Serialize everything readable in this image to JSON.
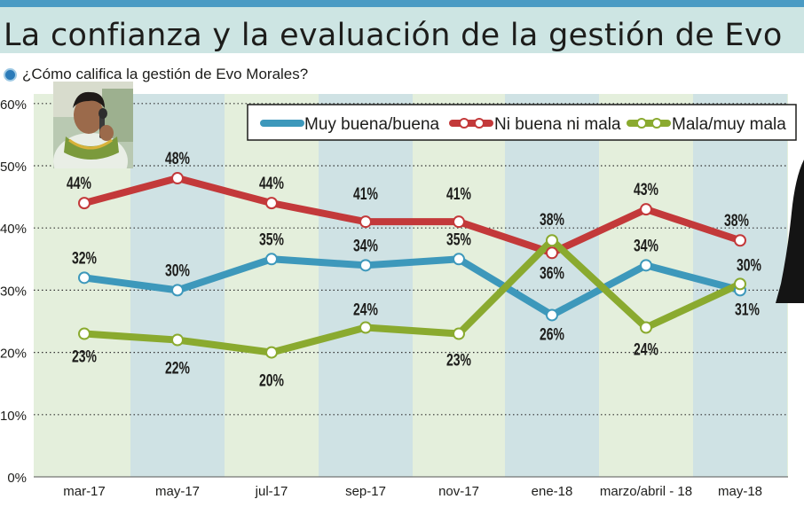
{
  "header": {
    "title": "La confianza y la evaluación de la gestión de Evo",
    "subtitle": "¿Cómo califica la gestión de Evo Morales?"
  },
  "colors": {
    "header_bg": "#cde5e3",
    "plot_bg": "#e4efdc",
    "band_bg": "#cfe2e4",
    "muy_buena": "#3d98bb",
    "ni_buena": "#c3393a",
    "mala": "#8aaa2f"
  },
  "icons": {
    "bullet": "blue-dot-icon",
    "photo": "evo-morales-photo",
    "person": "person-silhouette"
  },
  "chart_data": {
    "type": "line",
    "title": "¿Cómo califica la gestión de Evo Morales?",
    "categories": [
      "mar-17",
      "may-17",
      "jul-17",
      "sep-17",
      "nov-17",
      "ene-18",
      "marzo/abril - 18",
      "may-18"
    ],
    "y_ticks": [
      "0%",
      "10%",
      "20%",
      "30%",
      "40%",
      "50%",
      "60%"
    ],
    "ylim": [
      0,
      60
    ],
    "grid": "horizontal dotted",
    "legend_position": "top-right",
    "series": [
      {
        "name": "Muy buena/buena",
        "values": [
          32,
          30,
          35,
          34,
          35,
          26,
          34,
          30
        ],
        "labels": [
          "32%",
          "30%",
          "35%",
          "34%",
          "35%",
          "26%",
          "34%",
          "30%"
        ]
      },
      {
        "name": "Ni buena ni mala",
        "values": [
          44,
          48,
          44,
          41,
          41,
          36,
          43,
          38
        ],
        "labels": [
          "44%",
          "48%",
          "44%",
          "41%",
          "41%",
          "36%",
          "43%",
          "38%"
        ]
      },
      {
        "name": "Mala/muy mala",
        "values": [
          23,
          22,
          20,
          24,
          23,
          38,
          24,
          31
        ],
        "labels": [
          "23%",
          "22%",
          "20%",
          "24%",
          "23%",
          "38%",
          "24%",
          "31%"
        ]
      }
    ]
  }
}
